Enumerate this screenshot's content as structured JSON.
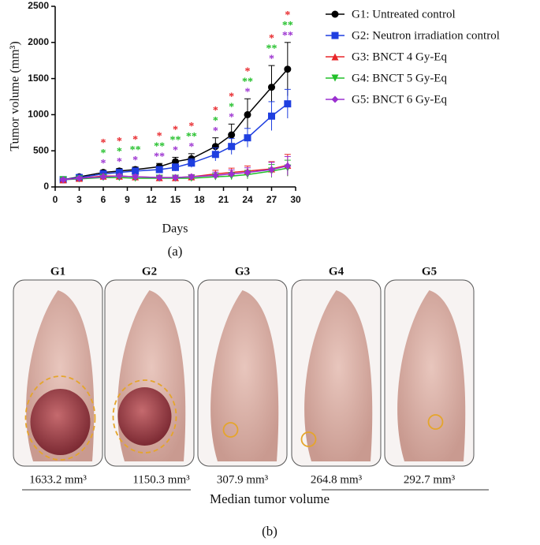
{
  "chart_data": {
    "type": "line",
    "ylabel": "Tumor volume (mm³)",
    "xlabel": "Days",
    "panel_label": "(a)",
    "xlim": [
      0,
      30
    ],
    "xticks": [
      0,
      3,
      6,
      9,
      12,
      15,
      18,
      21,
      24,
      27,
      30
    ],
    "ylim": [
      0,
      2500
    ],
    "yticks": [
      0,
      500,
      1000,
      1500,
      2000,
      2500
    ],
    "x": [
      1,
      3,
      6,
      8,
      10,
      13,
      15,
      17,
      20,
      22,
      24,
      27,
      29
    ],
    "series": [
      {
        "name": "G1: Untreated control",
        "color": "#000000",
        "marker": "circle",
        "values": [
          100,
          140,
          200,
          220,
          240,
          280,
          350,
          390,
          560,
          720,
          1000,
          1380,
          1630
        ],
        "errors": [
          20,
          25,
          30,
          35,
          35,
          45,
          60,
          70,
          120,
          150,
          220,
          300,
          370
        ]
      },
      {
        "name": "G2: Neutron irradiation control",
        "color": "#1f3fe0",
        "marker": "square",
        "values": [
          100,
          130,
          180,
          200,
          220,
          240,
          270,
          330,
          450,
          560,
          680,
          980,
          1150
        ],
        "errors": [
          20,
          20,
          25,
          30,
          30,
          40,
          50,
          60,
          90,
          110,
          130,
          200,
          200
        ]
      },
      {
        "name": "G3: BNCT 4 Gy-Eq",
        "color": "#e8262a",
        "marker": "triangle-up",
        "values": [
          100,
          120,
          150,
          150,
          140,
          130,
          130,
          140,
          180,
          200,
          220,
          250,
          300
        ],
        "errors": [
          20,
          20,
          25,
          25,
          25,
          25,
          30,
          30,
          50,
          60,
          70,
          100,
          150
        ]
      },
      {
        "name": "G4: BNCT 5 Gy-Eq",
        "color": "#22c02a",
        "marker": "triangle-down",
        "values": [
          100,
          110,
          130,
          130,
          120,
          120,
          120,
          120,
          140,
          150,
          170,
          220,
          260
        ],
        "errors": [
          20,
          20,
          20,
          20,
          20,
          25,
          25,
          25,
          40,
          50,
          60,
          90,
          110
        ]
      },
      {
        "name": "G5: BNCT 6 Gy-Eq",
        "color": "#9b30d0",
        "marker": "diamond",
        "values": [
          100,
          120,
          140,
          150,
          140,
          130,
          130,
          140,
          160,
          180,
          200,
          240,
          290
        ],
        "errors": [
          20,
          20,
          20,
          25,
          25,
          25,
          30,
          30,
          45,
          55,
          65,
          100,
          130
        ]
      }
    ],
    "significance": {
      "x": [
        6,
        8,
        10,
        13,
        15,
        17,
        20,
        22,
        24,
        27,
        29
      ],
      "rows": [
        {
          "color": "#e8262a",
          "labels": [
            "*",
            "*",
            "*",
            "*",
            "*",
            "*",
            "*",
            "*",
            "*",
            "*",
            "*"
          ]
        },
        {
          "color": "#22c02a",
          "labels": [
            "*",
            "*",
            "**",
            "**",
            "**",
            "**",
            "*",
            "*",
            "**",
            "**",
            "**"
          ]
        },
        {
          "color": "#9b30d0",
          "labels": [
            "*",
            "*",
            "*",
            "**",
            "*",
            "*",
            "*",
            "*",
            "*",
            "*",
            "**"
          ]
        }
      ]
    }
  },
  "photos": {
    "groups": [
      "G1",
      "G2",
      "G3",
      "G4",
      "G5"
    ],
    "values": [
      1633.2,
      1150.3,
      307.9,
      264.8,
      292.7
    ],
    "value_labels": [
      "1633.2 mm³",
      "1150.3 mm³",
      "307.9 mm³",
      "264.8 mm³",
      "292.7 mm³"
    ],
    "caption": "Median tumor volume",
    "panel_label": "(b)"
  }
}
